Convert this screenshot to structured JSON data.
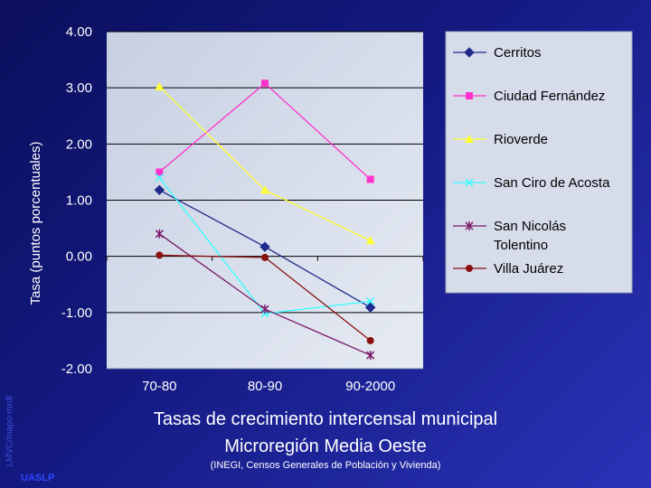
{
  "chart_data": {
    "type": "line",
    "title": "Tasas de crecimiento intercensal municipal",
    "subtitle": "Microregión Media Oeste",
    "source_note": "(INEGI, Censos Generales de Población y Vivienda)",
    "ylabel": "Tasa (puntos porcentuales)",
    "xlabel": "",
    "categories": [
      "70-80",
      "80-90",
      "90-2000"
    ],
    "ylim": [
      -2.0,
      4.0
    ],
    "yticks": [
      "4.00",
      "3.00",
      "2.00",
      "1.00",
      "0.00",
      "-1.00",
      "-2.00"
    ],
    "grid": true,
    "legend_position": "right",
    "series": [
      {
        "name": "Cerritos",
        "values": [
          1.18,
          0.17,
          -0.91
        ],
        "color": "#1f2a8c",
        "marker": "diamond"
      },
      {
        "name": "Ciudad Fernández",
        "values": [
          1.5,
          3.08,
          1.37
        ],
        "color": "#ff33cc",
        "marker": "square"
      },
      {
        "name": "Rioverde",
        "values": [
          3.02,
          1.18,
          0.28
        ],
        "color": "#ffff33",
        "marker": "triangle"
      },
      {
        "name": "San Ciro de Acosta",
        "values": [
          1.4,
          -1.02,
          -0.8
        ],
        "color": "#33ffff",
        "marker": "x"
      },
      {
        "name": "San Nicolás Tolentino",
        "values": [
          0.4,
          -0.94,
          -1.76
        ],
        "color": "#7a1a6a",
        "marker": "star"
      },
      {
        "name": "Villa Juárez",
        "values": [
          0.02,
          -0.02,
          -1.5
        ],
        "color": "#8a1010",
        "marker": "circle"
      }
    ]
  },
  "credits": {
    "side": "LMVC/mapo-mrdl",
    "org": "UASLP"
  }
}
